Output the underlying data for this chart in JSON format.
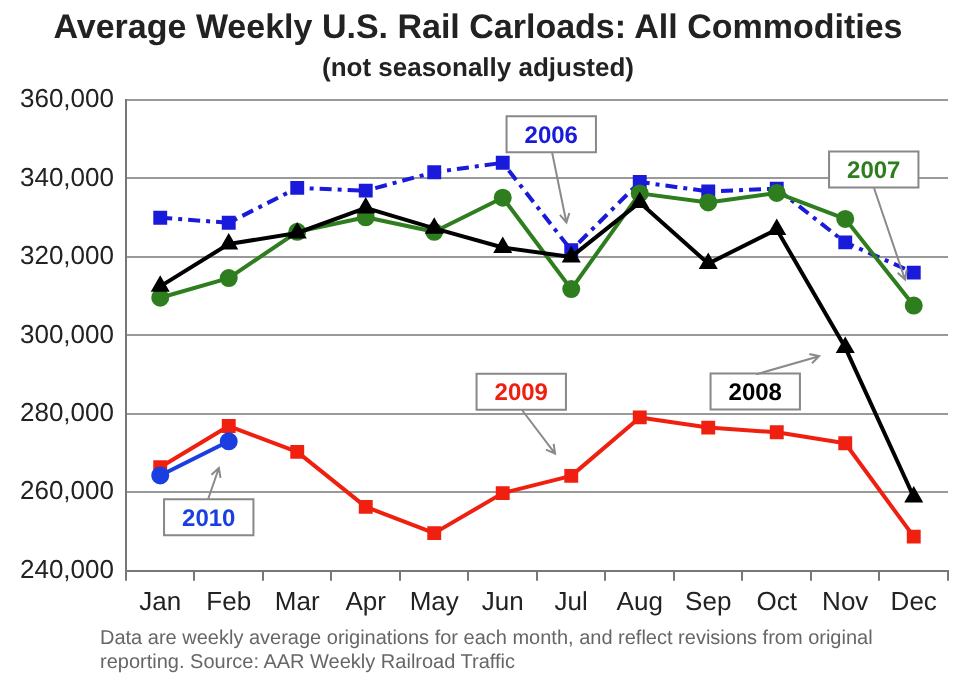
{
  "chart_data": {
    "type": "line",
    "title": "Average Weekly U.S. Rail Carloads: All Commodities",
    "subtitle": "(not seasonally adjusted)",
    "categories": [
      "Jan",
      "Feb",
      "Mar",
      "Apr",
      "May",
      "Jun",
      "Jul",
      "Aug",
      "Sep",
      "Oct",
      "Nov",
      "Dec"
    ],
    "series": [
      {
        "name": "2006",
        "color": "#1a1adb",
        "marker": "square",
        "line_style": "dashed",
        "values": [
          330000,
          328700,
          337600,
          336900,
          341600,
          344000,
          321700,
          339100,
          336700,
          337400,
          323700,
          316000
        ]
      },
      {
        "name": "2007",
        "color": "#2e7d1e",
        "marker": "circle",
        "line_style": "solid",
        "values": [
          309600,
          314600,
          326400,
          330100,
          326400,
          335100,
          311800,
          336200,
          333900,
          336300,
          329700,
          307600
        ]
      },
      {
        "name": "2008",
        "color": "#000000",
        "marker": "triangle",
        "line_style": "solid",
        "values": [
          312500,
          323300,
          326100,
          332500,
          327300,
          322400,
          320000,
          333900,
          318300,
          327000,
          296900,
          258800
        ]
      },
      {
        "name": "2009",
        "color": "#f02010",
        "marker": "square",
        "line_style": "solid",
        "values": [
          266400,
          276900,
          270300,
          256300,
          249600,
          259800,
          264200,
          279100,
          276500,
          275300,
          272500,
          248700
        ]
      },
      {
        "name": "2010",
        "color": "#1a3ee0",
        "marker": "circle",
        "line_style": "solid",
        "values": [
          264300,
          273000,
          null,
          null,
          null,
          null,
          null,
          null,
          null,
          null,
          null,
          null
        ]
      }
    ],
    "ylim": [
      240000,
      360000
    ],
    "yticks": [
      {
        "value": 240000,
        "label": "240,000"
      },
      {
        "value": 260000,
        "label": "260,000"
      },
      {
        "value": 280000,
        "label": "280,000"
      },
      {
        "value": 300000,
        "label": "300,000"
      },
      {
        "value": 320000,
        "label": "320,000"
      },
      {
        "value": 340000,
        "label": "340,000"
      },
      {
        "value": 360000,
        "label": "360,000"
      }
    ],
    "grid": "y",
    "legend": false,
    "annotations": [
      "Data are weekly average originations for each month, and reflect revisions from original reporting.  Source: AAR Weekly Railroad Traffic"
    ]
  }
}
